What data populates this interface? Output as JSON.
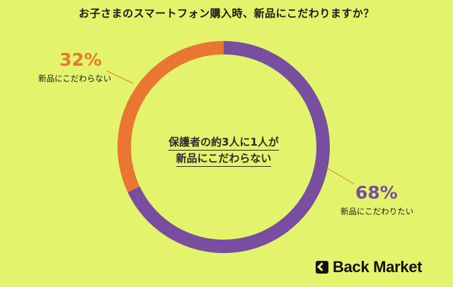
{
  "title": "お子さまのスマートフォン購入時、新品にこだわりますか？",
  "center_text": {
    "line1": "保護者の約3人に1人が",
    "line2": "新品にこだわらない"
  },
  "brand": "Back Market",
  "colors": {
    "background": "#e3f46c",
    "purple": "#774ea0",
    "orange": "#ea7632"
  },
  "chart_data": {
    "type": "pie",
    "variant": "donut",
    "slices": [
      {
        "label": "新品にこだわりたい",
        "value": 68,
        "display": "68%",
        "color": "#774ea0"
      },
      {
        "label": "新品にこだわらない",
        "value": 32,
        "display": "32%",
        "color": "#ea7632"
      }
    ]
  }
}
